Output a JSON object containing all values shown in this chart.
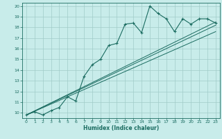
{
  "xlabel": "Humidex (Indice chaleur)",
  "bg_color": "#c8ecea",
  "grid_color": "#a0ccc8",
  "line_color": "#1a6b60",
  "xlim": [
    -0.5,
    23.5
  ],
  "ylim": [
    9.5,
    20.3
  ],
  "xticks": [
    0,
    1,
    2,
    3,
    4,
    5,
    6,
    7,
    8,
    9,
    10,
    11,
    12,
    13,
    14,
    15,
    16,
    17,
    18,
    19,
    20,
    21,
    22,
    23
  ],
  "yticks": [
    10,
    11,
    12,
    13,
    14,
    15,
    16,
    17,
    18,
    19,
    20
  ],
  "main_x": [
    0,
    1,
    2,
    3,
    4,
    5,
    6,
    7,
    8,
    9,
    10,
    11,
    12,
    13,
    14,
    15,
    16,
    17,
    18,
    19,
    20,
    21,
    22,
    23
  ],
  "main_y": [
    9.8,
    10.1,
    9.8,
    10.2,
    10.5,
    11.5,
    11.1,
    13.4,
    14.5,
    15.0,
    16.3,
    16.5,
    18.3,
    18.4,
    17.5,
    20.0,
    19.3,
    18.8,
    17.6,
    18.8,
    18.3,
    18.8,
    18.8,
    18.4
  ],
  "line1_x": [
    0,
    23
  ],
  "line1_y": [
    9.8,
    18.5
  ],
  "line2_x": [
    0,
    23
  ],
  "line2_y": [
    9.8,
    18.2
  ],
  "line3_x": [
    0,
    23
  ],
  "line3_y": [
    9.8,
    17.6
  ]
}
